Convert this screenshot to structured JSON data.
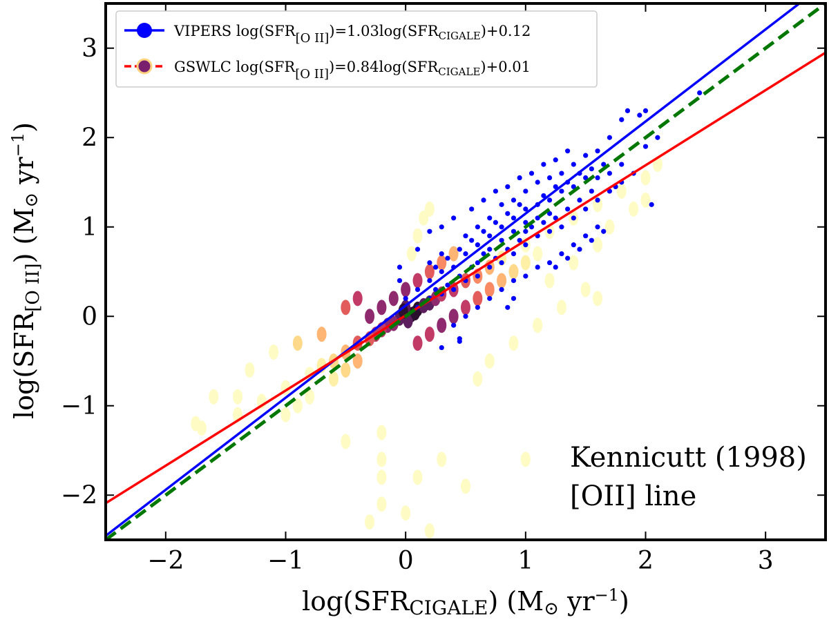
{
  "chart_data": {
    "type": "scatter",
    "xlabel_base": "log(SFR",
    "xlabel_sub": "CIGALE",
    "xlabel_tail": ") (M",
    "xlabel_odot": "⊙",
    "xlabel_unit": " yr",
    "xlabel_exp": "−1",
    "xlabel_close": ")",
    "ylabel_base": "log(SFR",
    "ylabel_sub": "[O II]",
    "ylabel_tail": ") (M",
    "ylabel_odot": "⊙",
    "ylabel_unit": " yr",
    "ylabel_exp": "−1",
    "ylabel_close": ")",
    "xlim": [
      -2.5,
      3.5
    ],
    "ylim": [
      -2.5,
      3.5
    ],
    "xticks": [
      -2,
      -1,
      0,
      1,
      2,
      3
    ],
    "yticks": [
      -2,
      -1,
      0,
      1,
      2,
      3
    ],
    "xtick_labels": [
      "−2",
      "−1",
      "0",
      "1",
      "2",
      "3"
    ],
    "ytick_labels": [
      "−2",
      "−1",
      "0",
      "1",
      "2",
      "3"
    ],
    "grid": false,
    "legend_position": "top-left",
    "lines": [
      {
        "name": "VIPERS",
        "slope": 1.03,
        "intercept": 0.12,
        "color": "#0000ff",
        "style": "solid"
      },
      {
        "name": "GSWLC",
        "slope": 0.84,
        "intercept": 0.01,
        "color": "#ff0000",
        "style": "solid"
      },
      {
        "name": "",
        "slope": 1.0,
        "intercept": 0.0,
        "color": "#007700",
        "style": "dashed"
      }
    ],
    "series": [
      {
        "name": "VIPERS",
        "color": "#0000ff",
        "marker": "circle",
        "points": [
          [
            0.3,
            0.5
          ],
          [
            0.4,
            0.55
          ],
          [
            0.5,
            0.7
          ],
          [
            0.6,
            0.8
          ],
          [
            0.7,
            0.9
          ],
          [
            0.8,
            1.0
          ],
          [
            0.9,
            1.1
          ],
          [
            1.0,
            1.2
          ],
          [
            1.1,
            1.25
          ],
          [
            1.2,
            1.3
          ],
          [
            1.3,
            1.4
          ],
          [
            1.4,
            1.45
          ],
          [
            1.5,
            1.55
          ],
          [
            0.6,
            0.6
          ],
          [
            0.7,
            0.75
          ],
          [
            0.8,
            0.85
          ],
          [
            0.9,
            0.95
          ],
          [
            1.0,
            1.05
          ],
          [
            1.1,
            1.1
          ],
          [
            1.2,
            1.15
          ],
          [
            0.5,
            0.9
          ],
          [
            0.6,
            1.0
          ],
          [
            0.7,
            1.1
          ],
          [
            0.8,
            1.25
          ],
          [
            0.9,
            1.3
          ],
          [
            1.0,
            1.4
          ],
          [
            1.1,
            1.5
          ],
          [
            1.2,
            1.55
          ],
          [
            0.4,
            0.3
          ],
          [
            0.5,
            0.4
          ],
          [
            0.6,
            0.45
          ],
          [
            0.7,
            0.55
          ],
          [
            0.8,
            0.6
          ],
          [
            0.9,
            0.7
          ],
          [
            1.0,
            0.8
          ],
          [
            1.1,
            0.9
          ],
          [
            1.2,
            0.95
          ],
          [
            1.3,
            1.0
          ],
          [
            1.4,
            1.1
          ],
          [
            1.5,
            1.2
          ],
          [
            1.6,
            1.3
          ],
          [
            1.7,
            1.4
          ],
          [
            1.8,
            1.5
          ],
          [
            1.9,
            1.6
          ],
          [
            1.5,
            1.8
          ],
          [
            1.6,
            1.85
          ],
          [
            1.7,
            2.0
          ],
          [
            1.8,
            2.2
          ],
          [
            1.85,
            2.3
          ],
          [
            2.0,
            2.3
          ],
          [
            1.95,
            2.25
          ],
          [
            2.45,
            2.5
          ],
          [
            2.1,
            2.0
          ],
          [
            2.0,
            1.9
          ],
          [
            1.4,
            1.7
          ],
          [
            1.3,
            1.6
          ],
          [
            1.3,
            0.7
          ],
          [
            1.4,
            0.8
          ],
          [
            1.5,
            0.9
          ],
          [
            1.6,
            1.0
          ],
          [
            1.2,
            0.6
          ],
          [
            1.1,
            0.55
          ],
          [
            1.0,
            0.45
          ],
          [
            0.9,
            0.4
          ],
          [
            0.8,
            0.3
          ],
          [
            0.7,
            0.2
          ],
          [
            0.6,
            0.1
          ],
          [
            0.5,
            0.0
          ],
          [
            0.4,
            -0.1
          ],
          [
            0.45,
            -0.25
          ],
          [
            0.3,
            -0.35
          ],
          [
            0.45,
            -0.28
          ],
          [
            0.9,
            0.2
          ],
          [
            0.85,
            0.1
          ],
          [
            0.3,
            0.7
          ],
          [
            0.2,
            0.6
          ],
          [
            0.2,
            0.4
          ],
          [
            0.1,
            0.3
          ],
          [
            0.0,
            0.2
          ],
          [
            0.1,
            0.1
          ],
          [
            0.2,
            0.2
          ],
          [
            0.3,
            0.25
          ],
          [
            -0.05,
            0.55
          ],
          [
            -0.05,
            0.4
          ],
          [
            0.1,
            0.75
          ],
          [
            0.2,
            0.95
          ],
          [
            0.3,
            1.0
          ],
          [
            0.4,
            1.1
          ],
          [
            0.55,
            1.2
          ],
          [
            0.65,
            1.3
          ],
          [
            0.75,
            1.4
          ],
          [
            0.85,
            1.45
          ],
          [
            0.95,
            1.55
          ],
          [
            1.05,
            1.6
          ],
          [
            1.15,
            1.7
          ],
          [
            1.25,
            1.75
          ],
          [
            1.35,
            1.85
          ],
          [
            1.0,
            0.95
          ],
          [
            1.05,
            1.0
          ],
          [
            1.15,
            1.05
          ],
          [
            1.25,
            1.1
          ],
          [
            1.35,
            1.2
          ],
          [
            1.45,
            1.3
          ],
          [
            1.55,
            1.4
          ],
          [
            0.65,
            0.7
          ],
          [
            0.75,
            0.65
          ],
          [
            0.85,
            0.75
          ],
          [
            0.95,
            0.85
          ],
          [
            0.55,
            0.55
          ],
          [
            0.45,
            0.45
          ],
          [
            0.35,
            0.35
          ],
          [
            0.25,
            0.3
          ],
          [
            2.05,
            1.25
          ],
          [
            1.75,
            1.45
          ],
          [
            1.65,
            0.95
          ],
          [
            1.55,
            0.85
          ],
          [
            1.45,
            0.75
          ],
          [
            1.35,
            0.65
          ],
          [
            1.25,
            0.55
          ],
          [
            0.95,
            1.25
          ],
          [
            0.85,
            1.15
          ],
          [
            0.75,
            1.05
          ],
          [
            0.65,
            0.95
          ],
          [
            0.55,
            0.85
          ],
          [
            0.45,
            0.75
          ],
          [
            0.35,
            0.65
          ],
          [
            0.25,
            0.55
          ],
          [
            1.15,
            1.35
          ],
          [
            1.25,
            1.45
          ],
          [
            1.35,
            1.5
          ],
          [
            1.45,
            1.6
          ],
          [
            1.55,
            1.65
          ],
          [
            1.65,
            1.7
          ],
          [
            1.6,
            1.55
          ],
          [
            1.7,
            1.6
          ],
          [
            1.8,
            1.7
          ]
        ]
      },
      {
        "name": "GSWLC",
        "color": "#7a1f6e",
        "marker": "hexbin",
        "points": [
          [
            0.0,
            0.0
          ],
          [
            0.05,
            0.02
          ],
          [
            -0.05,
            -0.02
          ],
          [
            0.1,
            0.08
          ],
          [
            -0.1,
            -0.08
          ],
          [
            0.15,
            0.12
          ],
          [
            -0.15,
            -0.1
          ],
          [
            0.2,
            0.15
          ],
          [
            -0.2,
            -0.15
          ],
          [
            0.25,
            0.2
          ],
          [
            -0.25,
            -0.2
          ],
          [
            0.3,
            0.25
          ],
          [
            -0.3,
            -0.25
          ],
          [
            0.4,
            0.3
          ],
          [
            -0.4,
            -0.3
          ],
          [
            0.5,
            0.4
          ],
          [
            -0.5,
            -0.4
          ],
          [
            0.6,
            0.45
          ],
          [
            -0.6,
            -0.5
          ],
          [
            0.7,
            0.55
          ],
          [
            -0.7,
            -0.55
          ],
          [
            0.8,
            0.65
          ],
          [
            -0.8,
            -0.65
          ],
          [
            1.0,
            0.8
          ],
          [
            -1.0,
            -0.8
          ],
          [
            1.2,
            0.95
          ],
          [
            1.4,
            1.1
          ],
          [
            1.6,
            1.25
          ],
          [
            1.8,
            1.4
          ],
          [
            2.0,
            1.55
          ],
          [
            -1.2,
            -0.95
          ],
          [
            -1.4,
            -1.1
          ],
          [
            -1.7,
            -1.25
          ],
          [
            -1.75,
            -1.2
          ],
          [
            0.1,
            -0.3
          ],
          [
            0.2,
            -0.2
          ],
          [
            0.3,
            -0.1
          ],
          [
            0.4,
            0.0
          ],
          [
            0.5,
            0.1
          ],
          [
            -0.1,
            0.2
          ],
          [
            -0.2,
            0.1
          ],
          [
            -0.3,
            0.0
          ],
          [
            0.0,
            0.3
          ],
          [
            0.1,
            0.4
          ],
          [
            0.2,
            0.5
          ],
          [
            -0.5,
            -0.6
          ],
          [
            -0.4,
            -0.5
          ],
          [
            -0.6,
            -0.7
          ],
          [
            0.6,
            0.2
          ],
          [
            0.7,
            0.3
          ],
          [
            0.8,
            0.4
          ],
          [
            0.9,
            0.5
          ],
          [
            1.0,
            0.6
          ],
          [
            1.1,
            0.7
          ],
          [
            0.3,
            0.6
          ],
          [
            0.4,
            0.7
          ],
          [
            -0.8,
            -0.9
          ],
          [
            -0.9,
            -1.0
          ],
          [
            -1.0,
            -1.1
          ],
          [
            -0.2,
            -1.3
          ],
          [
            -0.2,
            -1.6
          ],
          [
            -0.2,
            -1.8
          ],
          [
            -0.2,
            -2.1
          ],
          [
            0.1,
            -1.8
          ],
          [
            0.0,
            -2.2
          ],
          [
            -0.3,
            -2.3
          ],
          [
            0.2,
            -2.4
          ],
          [
            0.3,
            -1.6
          ],
          [
            -0.5,
            -1.4
          ],
          [
            0.5,
            -1.9
          ],
          [
            1.0,
            -1.6
          ],
          [
            1.2,
            0.4
          ],
          [
            1.4,
            0.6
          ],
          [
            1.6,
            0.8
          ],
          [
            1.5,
            0.3
          ],
          [
            1.3,
            0.1
          ],
          [
            1.1,
            -0.1
          ],
          [
            0.9,
            -0.3
          ],
          [
            0.7,
            -0.5
          ],
          [
            0.6,
            -0.7
          ],
          [
            1.7,
            1.0
          ],
          [
            1.9,
            1.2
          ],
          [
            2.1,
            1.7
          ],
          [
            2.0,
            1.3
          ],
          [
            1.6,
            0.2
          ],
          [
            -1.3,
            -0.6
          ],
          [
            -1.1,
            -0.4
          ],
          [
            -0.9,
            -0.3
          ],
          [
            -0.7,
            -0.2
          ],
          [
            -0.5,
            0.1
          ],
          [
            -0.4,
            0.2
          ],
          [
            -1.4,
            -0.9
          ],
          [
            -1.6,
            -0.9
          ],
          [
            0.05,
            0.7
          ],
          [
            0.1,
            0.9
          ],
          [
            0.15,
            1.1
          ],
          [
            0.2,
            1.2
          ],
          [
            0.0,
            0.1
          ],
          [
            0.02,
            -0.05
          ],
          [
            0.08,
            0.04
          ],
          [
            -0.02,
            0.06
          ]
        ]
      }
    ]
  },
  "legend": [
    {
      "name": "VIPERS",
      "equation_a": "log(SFR",
      "equation_sub": "[O II]",
      "equation_b": ")=1.03log(SFR",
      "equation_sub2": "CIGALE",
      "equation_c": ")+0.12",
      "color": "#0000ff",
      "marker_color": "#0000ff"
    },
    {
      "name": "GSWLC",
      "equation_a": "log(SFR",
      "equation_sub": "[O II]",
      "equation_b": ")=0.84log(SFR",
      "equation_sub2": "CIGALE",
      "equation_c": ")+0.01",
      "color": "#ff0000",
      "marker_color": "#7a1f6e"
    }
  ],
  "annotation": {
    "line1": "Kennicutt (1998)",
    "line2": "[OII] line"
  }
}
